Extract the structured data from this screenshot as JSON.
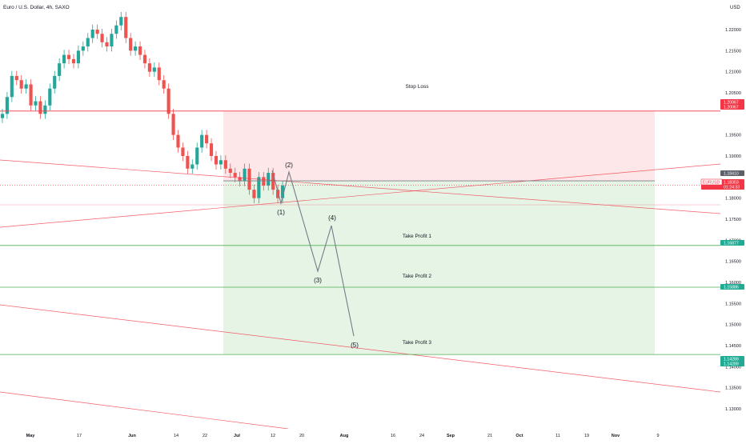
{
  "header": {
    "symbol_title": "Euro / U.S. Dollar, 4h, SAXO",
    "currency": "USD"
  },
  "chart_data": {
    "type": "candlestick",
    "symbol": "EURUSD",
    "timeframe": "4h",
    "source": "SAXO",
    "ylim": [
      1.1275,
      1.2235
    ],
    "y_ticks": [
      "1.22000",
      "1.21500",
      "1.21000",
      "1.20500",
      "1.19500",
      "1.19000",
      "1.18000",
      "1.17500",
      "1.17000",
      "1.16500",
      "1.16000",
      "1.15500",
      "1.15000",
      "1.14500",
      "1.14000",
      "1.13500",
      "1.13000"
    ],
    "x_ticks": [
      "May",
      "17",
      "Jun",
      "14",
      "22",
      "Jul",
      "12",
      "20",
      "Aug",
      "16",
      "24",
      "Sep",
      "21",
      "Oct",
      "11",
      "19",
      "Nov",
      "9"
    ],
    "price_badges": [
      {
        "value": "1.20067",
        "value2": "1.20067",
        "color": "#f23645",
        "name": "stop-loss-price-badge"
      },
      {
        "value": "1.18410",
        "color": "#5d606b",
        "name": "entry-price-badge"
      },
      {
        "value": "1.18303",
        "value2": "01:24:33",
        "color": "#f23645",
        "symbol": "EURUSD",
        "name": "current-price-badge"
      },
      {
        "value": "1.16877",
        "color": "#22ab94",
        "name": "take-profit-1-badge"
      },
      {
        "value": "1.15886",
        "color": "#22ab94",
        "name": "take-profit-2-badge"
      },
      {
        "value": "1.14289",
        "value2": "1.14289",
        "color": "#22ab94",
        "name": "take-profit-3-badge"
      }
    ],
    "levels": [
      {
        "label": "Stop Loss",
        "price": 1.20067,
        "color": "#f23645"
      },
      {
        "label": "Take Profit 1",
        "price": 1.16877,
        "color": "#4caf50"
      },
      {
        "label": "Take Profit 2",
        "price": 1.15886,
        "color": "#4caf50"
      },
      {
        "label": "Take Profit 3",
        "price": 1.14289,
        "color": "#4caf50"
      }
    ],
    "entry_price": 1.1841,
    "current_price": 1.18303,
    "wave_labels": [
      "(1)",
      "(2)",
      "(3)",
      "(4)",
      "(5)"
    ],
    "candles_close": [
      1.2,
      1.204,
      1.209,
      1.208,
      1.206,
      1.207,
      1.202,
      1.203,
      1.2,
      1.202,
      1.206,
      1.209,
      1.212,
      1.214,
      1.213,
      1.212,
      1.215,
      1.216,
      1.218,
      1.22,
      1.219,
      1.217,
      1.216,
      1.219,
      1.221,
      1.223,
      1.218,
      1.215,
      1.216,
      1.214,
      1.212,
      1.21,
      1.211,
      1.208,
      1.206,
      1.2,
      1.195,
      1.192,
      1.19,
      1.187,
      1.188,
      1.192,
      1.195,
      1.193,
      1.19,
      1.188,
      1.189,
      1.187,
      1.186,
      1.185,
      1.184,
      1.187,
      1.182,
      1.18,
      1.185,
      1.183,
      1.186,
      1.182,
      1.18,
      1.183
    ],
    "colors": {
      "up": "#26a69a",
      "down": "#ef5350",
      "stop_zone": "rgba(242,54,69,0.12)",
      "target_zone": "rgba(76,175,80,0.14)"
    }
  }
}
